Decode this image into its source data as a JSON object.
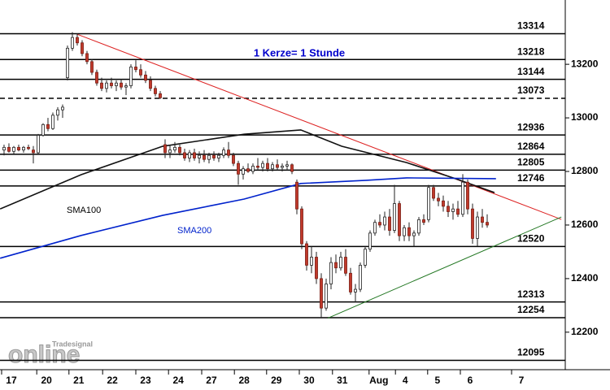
{
  "chart_data": {
    "type": "candlestick",
    "annotation": "1 Kerze= 1 Stunde",
    "annotation_color": "#0000cc",
    "watermark": {
      "brand": "Tradesignal",
      "logo": "online"
    },
    "xlim": [
      -0.83,
      115
    ],
    "ylim": [
      12060,
      13440
    ],
    "xticks": [
      {
        "value": 1.5,
        "label": "17"
      },
      {
        "value": 8.7,
        "label": "20"
      },
      {
        "value": 15.3,
        "label": "21"
      },
      {
        "value": 22.2,
        "label": "22"
      },
      {
        "value": 29,
        "label": "23"
      },
      {
        "value": 35.7,
        "label": "24"
      },
      {
        "value": 42.5,
        "label": "27"
      },
      {
        "value": 49.2,
        "label": "28"
      },
      {
        "value": 55.8,
        "label": "29"
      },
      {
        "value": 62.5,
        "label": "30"
      },
      {
        "value": 69.3,
        "label": "31"
      },
      {
        "value": 76.8,
        "label": "Aug"
      },
      {
        "value": 82.2,
        "label": "4"
      },
      {
        "value": 88.8,
        "label": "5"
      },
      {
        "value": 95.5,
        "label": "6"
      },
      {
        "value": 106,
        "label": "7"
      }
    ],
    "yticks": [
      12200,
      12400,
      12600,
      12800,
      13000,
      13200
    ],
    "up_color": "#ffffff",
    "down_color": "#c0392b",
    "candles": {
      "open": [
        12880,
        12890,
        12875,
        12890,
        12880,
        12890,
        12880,
        12870,
        12935,
        12975,
        12960,
        13010,
        13030,
        13150,
        13260,
        13300,
        13280,
        13240,
        13210,
        13170,
        13130,
        13110,
        13130,
        13120,
        13130,
        13115,
        13120,
        13190,
        13180,
        13160,
        13140,
        13110,
        13090,
        12900,
        12870,
        12880,
        12890,
        12870,
        12850,
        12870,
        12850,
        12860,
        12845,
        12860,
        12850,
        12860,
        12880,
        12860,
        12830,
        12790,
        12810,
        12800,
        12820,
        12815,
        12830,
        12810,
        12825,
        12815,
        12820,
        12825,
        12760,
        12660,
        12530,
        12450,
        12480,
        12400,
        12290,
        12380,
        12460,
        12440,
        12480,
        12420,
        12350,
        12360,
        12450,
        12510,
        12570,
        12610,
        12600,
        12630,
        12580,
        12680,
        12560,
        12590,
        12560,
        12570,
        12620,
        12620,
        12740,
        12700,
        12690,
        12670,
        12650,
        12660,
        12640,
        12760,
        12660,
        12550,
        12630,
        12610
      ],
      "high": [
        12900,
        12905,
        12895,
        12900,
        12895,
        12900,
        12895,
        12940,
        12980,
        13000,
        13020,
        13040,
        13050,
        13270,
        13320,
        13315,
        13290,
        13250,
        13220,
        13180,
        13150,
        13140,
        13150,
        13140,
        13145,
        13130,
        13200,
        13215,
        13200,
        13175,
        13155,
        13120,
        13100,
        12920,
        12900,
        12910,
        12900,
        12885,
        12880,
        12885,
        12875,
        12880,
        12870,
        12875,
        12870,
        12890,
        12910,
        12870,
        12840,
        12820,
        12830,
        12830,
        12850,
        12840,
        12850,
        12835,
        12845,
        12830,
        12840,
        12830,
        12770,
        12670,
        12540,
        12520,
        12500,
        12420,
        12400,
        12480,
        12490,
        12500,
        12510,
        12440,
        12380,
        12460,
        12520,
        12580,
        12620,
        12640,
        12650,
        12660,
        12750,
        12690,
        12600,
        12610,
        12580,
        12630,
        12640,
        12750,
        12750,
        12720,
        12710,
        12690,
        12680,
        12690,
        12790,
        12770,
        12680,
        12650,
        12660,
        12640
      ],
      "low": [
        12860,
        12870,
        12865,
        12875,
        12870,
        12880,
        12830,
        12865,
        12930,
        12950,
        12955,
        12990,
        13000,
        13140,
        13250,
        13270,
        13230,
        13200,
        13160,
        13120,
        13100,
        13095,
        13110,
        13100,
        13105,
        13085,
        13110,
        13170,
        13150,
        13130,
        13100,
        13080,
        13070,
        12850,
        12850,
        12870,
        12860,
        12840,
        12835,
        12840,
        12830,
        12835,
        12830,
        12840,
        12835,
        12850,
        12850,
        12820,
        12750,
        12770,
        12795,
        12790,
        12805,
        12800,
        12800,
        12800,
        12805,
        12800,
        12805,
        12790,
        12640,
        12510,
        12430,
        12420,
        12380,
        12254,
        12280,
        12360,
        12420,
        12430,
        12410,
        12340,
        12313,
        12350,
        12440,
        12500,
        12560,
        12590,
        12580,
        12560,
        12570,
        12540,
        12540,
        12540,
        12520,
        12560,
        12600,
        12610,
        12690,
        12670,
        12650,
        12630,
        12620,
        12630,
        12630,
        12640,
        12530,
        12520,
        12590,
        12590
      ],
      "close": [
        12890,
        12875,
        12890,
        12880,
        12890,
        12885,
        12870,
        12935,
        12975,
        12960,
        13010,
        13030,
        13040,
        13260,
        13300,
        13280,
        13240,
        13210,
        13170,
        13130,
        13110,
        13130,
        13120,
        13130,
        13115,
        13120,
        13190,
        13180,
        13160,
        13140,
        13110,
        13090,
        13075,
        12870,
        12880,
        12890,
        12870,
        12850,
        12870,
        12850,
        12860,
        12845,
        12860,
        12850,
        12860,
        12880,
        12860,
        12830,
        12790,
        12810,
        12800,
        12820,
        12815,
        12830,
        12810,
        12825,
        12815,
        12820,
        12825,
        12800,
        12660,
        12530,
        12450,
        12480,
        12400,
        12290,
        12380,
        12460,
        12440,
        12480,
        12420,
        12350,
        12360,
        12450,
        12510,
        12570,
        12610,
        12600,
        12630,
        12580,
        12680,
        12560,
        12590,
        12560,
        12570,
        12620,
        12610,
        12740,
        12700,
        12690,
        12670,
        12650,
        12660,
        12640,
        12760,
        12660,
        12550,
        12630,
        12610,
        12600
      ]
    },
    "levels": [
      {
        "value": 13314
      },
      {
        "value": 13218
      },
      {
        "value": 13144
      },
      {
        "value": 13073,
        "dashed": true
      },
      {
        "value": 12936
      },
      {
        "value": 12864
      },
      {
        "value": 12805
      },
      {
        "value": 12746
      },
      {
        "value": 12520
      },
      {
        "value": 12313
      },
      {
        "value": 12254
      },
      {
        "value": 12095
      }
    ],
    "series": [
      {
        "name": "SMA100",
        "color": "#111111",
        "x": [
          -0.8,
          15.8,
          32.5,
          49.2,
          60.8,
          69.2,
          82.5,
          92.5,
          100.5
        ],
        "values": [
          12660,
          12788,
          12894,
          12939,
          12955,
          12894,
          12833,
          12773,
          12721
        ]
      },
      {
        "name": "SMA200",
        "color": "#0022cc",
        "x": [
          -0.8,
          15.8,
          32.5,
          49.2,
          60.8,
          74.2,
          82.5,
          100.8
        ],
        "values": [
          12476,
          12561,
          12636,
          12697,
          12755,
          12767,
          12776,
          12773
        ]
      }
    ],
    "trendlines": [
      {
        "color": "#dd2222",
        "x": [
          15,
          114.2
        ],
        "values": [
          13312,
          12621
        ]
      },
      {
        "color": "#227722",
        "x": [
          66.3,
          114.2
        ],
        "values": [
          12252,
          12630
        ]
      }
    ]
  }
}
